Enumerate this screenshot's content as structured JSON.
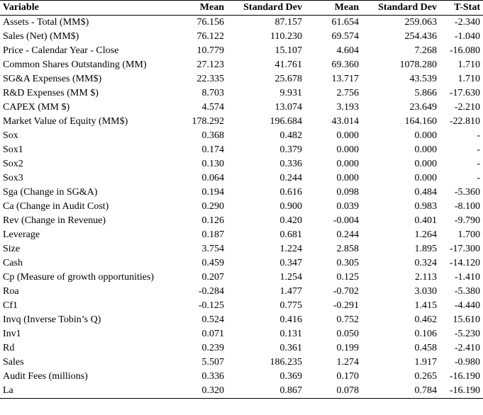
{
  "table": {
    "headers": {
      "variable": "Variable",
      "mean1": "Mean",
      "sd1": "Standard Dev",
      "mean2": "Mean",
      "sd2": "Standard Dev",
      "tstat": "T-Stat"
    },
    "rows": [
      {
        "variable": "Assets - Total (MM$)",
        "mean1": "76.156",
        "sd1": "87.157",
        "mean2": "61.654",
        "sd2": "259.063",
        "tstat": "-2.340"
      },
      {
        "variable": "Sales (Net) (MM$)",
        "mean1": "76.122",
        "sd1": "110.230",
        "mean2": "69.574",
        "sd2": "254.436",
        "tstat": "-1.040"
      },
      {
        "variable": "Price - Calendar Year - Close",
        "mean1": "10.779",
        "sd1": "15.107",
        "mean2": "4.604",
        "sd2": "7.268",
        "tstat": "-16.080"
      },
      {
        "variable": "Common Shares Outstanding (MM)",
        "mean1": "27.123",
        "sd1": "41.761",
        "mean2": "69.360",
        "sd2": "1078.280",
        "tstat": "1.710"
      },
      {
        "variable": "SG&A Expenses (MM$)",
        "mean1": "22.335",
        "sd1": "25.678",
        "mean2": "13.717",
        "sd2": "43.539",
        "tstat": "1.710"
      },
      {
        "variable": "R&D Expenses (MM $)",
        "mean1": "8.703",
        "sd1": "9.931",
        "mean2": "2.756",
        "sd2": "5.866",
        "tstat": "-17.630"
      },
      {
        "variable": "CAPEX (MM $)",
        "mean1": "4.574",
        "sd1": "13.074",
        "mean2": "3.193",
        "sd2": "23.649",
        "tstat": "-2.210"
      },
      {
        "variable": "Market Value of Equity (MM$)",
        "mean1": "178.292",
        "sd1": "196.684",
        "mean2": "43.014",
        "sd2": "164.160",
        "tstat": "-22.810"
      },
      {
        "variable": "Sox",
        "mean1": "0.368",
        "sd1": "0.482",
        "mean2": "0.000",
        "sd2": "0.000",
        "tstat": "-"
      },
      {
        "variable": "Sox1",
        "mean1": "0.174",
        "sd1": "0.379",
        "mean2": "0.000",
        "sd2": "0.000",
        "tstat": "-"
      },
      {
        "variable": "Sox2",
        "mean1": "0.130",
        "sd1": "0.336",
        "mean2": "0.000",
        "sd2": "0.000",
        "tstat": "-"
      },
      {
        "variable": "Sox3",
        "mean1": "0.064",
        "sd1": "0.244",
        "mean2": "0.000",
        "sd2": "0.000",
        "tstat": "-"
      },
      {
        "variable": "Sga (Change in SG&A)",
        "mean1": "0.194",
        "sd1": "0.616",
        "mean2": "0.098",
        "sd2": "0.484",
        "tstat": "-5.360"
      },
      {
        "variable": "Ca (Change in Audit Cost)",
        "mean1": "0.290",
        "sd1": "0.900",
        "mean2": "0.039",
        "sd2": "0.983",
        "tstat": "-8.100"
      },
      {
        "variable": "Rev (Change in Revenue)",
        "mean1": "0.126",
        "sd1": "0.420",
        "mean2": "-0.004",
        "sd2": "0.401",
        "tstat": "-9.790"
      },
      {
        "variable": "Leverage",
        "mean1": "0.187",
        "sd1": "0.681",
        "mean2": "0.244",
        "sd2": "1.264",
        "tstat": "1.700"
      },
      {
        "variable": "Size",
        "mean1": "3.754",
        "sd1": "1.224",
        "mean2": "2.858",
        "sd2": "1.895",
        "tstat": "-17.300"
      },
      {
        "variable": "Cash",
        "mean1": "0.459",
        "sd1": "0.347",
        "mean2": "0.305",
        "sd2": "0.324",
        "tstat": "-14.120"
      },
      {
        "variable": "Cp (Measure of growth opportunities)",
        "mean1": "0.207",
        "sd1": "1.254",
        "mean2": "0.125",
        "sd2": "2.113",
        "tstat": "-1.410"
      },
      {
        "variable": "Roa",
        "mean1": "-0.284",
        "sd1": "1.477",
        "mean2": "-0.702",
        "sd2": "3.030",
        "tstat": "-5.380"
      },
      {
        "variable": "Cf1",
        "mean1": "-0.125",
        "sd1": "0.775",
        "mean2": "-0.291",
        "sd2": "1.415",
        "tstat": "-4.440"
      },
      {
        "variable": "Invq  (Inverse Tobin’s Q)",
        "mean1": "0.524",
        "sd1": "0.416",
        "mean2": "0.752",
        "sd2": "0.462",
        "tstat": "15.610"
      },
      {
        "variable": "Inv1",
        "mean1": "0.071",
        "sd1": "0.131",
        "mean2": "0.050",
        "sd2": "0.106",
        "tstat": "-5.230"
      },
      {
        "variable": "Rd",
        "mean1": "0.239",
        "sd1": "0.361",
        "mean2": "0.199",
        "sd2": "0.458",
        "tstat": "-2.410"
      },
      {
        "variable": "Sales",
        "mean1": "5.507",
        "sd1": "186.235",
        "mean2": "1.274",
        "sd2": "1.917",
        "tstat": "-0.980"
      },
      {
        "variable": "Audit Fees (millions)",
        "mean1": "0.336",
        "sd1": "0.369",
        "mean2": "0.170",
        "sd2": "0.265",
        "tstat": "-16.190"
      },
      {
        "variable": "La",
        "mean1": "0.320",
        "sd1": "0.867",
        "mean2": "0.078",
        "sd2": "0.784",
        "tstat": "-16.190"
      }
    ]
  }
}
